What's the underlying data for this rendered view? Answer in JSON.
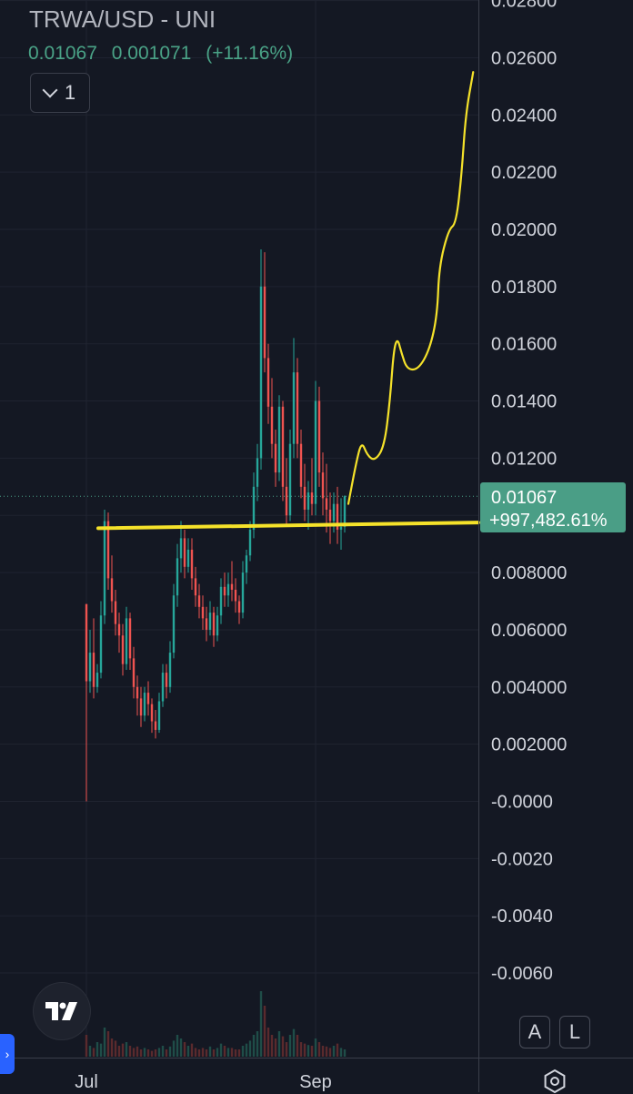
{
  "header": {
    "title": "TRWA/USD - UNI",
    "price": "0.01067",
    "change": "0.001071",
    "change_pct": "(+11.16%)"
  },
  "indicators_toggle": {
    "count": "1"
  },
  "scale_buttons": {
    "auto": "A",
    "log": "L"
  },
  "colors": {
    "background": "#141823",
    "up": "#26a69a",
    "down": "#ef5350",
    "drawing": "#f5e22a",
    "price_tag": "#4a9e86"
  },
  "icons": {
    "logo": "tradingview-logo-icon",
    "toggle": "chevron-down-icon",
    "settings": "gear-icon",
    "side_tab": "chevron-right-icon"
  },
  "chart_data": {
    "type": "candlestick",
    "title": "TRWA/USD - UNI",
    "ylim": [
      -0.0072,
      0.0282
    ],
    "y_ticks": [
      "0.02800",
      "0.02600",
      "0.02400",
      "0.02200",
      "0.02000",
      "0.01800",
      "0.01600",
      "0.01400",
      "0.01200",
      "0.008000",
      "0.006000",
      "0.004000",
      "0.002000",
      "-0.0000",
      "-0.0020",
      "-0.0040",
      "-0.0060"
    ],
    "x_ticks": [
      "Jul",
      "Sep"
    ],
    "last_price_label": "0.01067",
    "last_price_pct": "+997,482.61%",
    "last_price": 0.01067,
    "series": [
      {
        "values": [
          [
            0.0069,
            0.0069,
            0.0,
            0.0042
          ],
          [
            0.0042,
            0.006,
            0.0038,
            0.0052
          ],
          [
            0.0052,
            0.0064,
            0.0036,
            0.004
          ],
          [
            0.004,
            0.0048,
            0.0038,
            0.0045
          ],
          [
            0.0045,
            0.007,
            0.0043,
            0.0065
          ],
          [
            0.0065,
            0.0102,
            0.0062,
            0.0098
          ],
          [
            0.0098,
            0.0101,
            0.0074,
            0.0078
          ],
          [
            0.0078,
            0.0086,
            0.0066,
            0.007
          ],
          [
            0.007,
            0.0074,
            0.0058,
            0.0062
          ],
          [
            0.0062,
            0.0066,
            0.0052,
            0.0058
          ],
          [
            0.0058,
            0.0062,
            0.0044,
            0.0048
          ],
          [
            0.0048,
            0.0068,
            0.0046,
            0.0064
          ],
          [
            0.0064,
            0.0066,
            0.0046,
            0.005
          ],
          [
            0.005,
            0.0054,
            0.0036,
            0.004
          ],
          [
            0.004,
            0.0044,
            0.003,
            0.0036
          ],
          [
            0.0036,
            0.004,
            0.0026,
            0.003
          ],
          [
            0.003,
            0.004,
            0.0028,
            0.0038
          ],
          [
            0.0038,
            0.0042,
            0.003,
            0.0034
          ],
          [
            0.0034,
            0.0036,
            0.0024,
            0.0028
          ],
          [
            0.0028,
            0.0032,
            0.0022,
            0.0025
          ],
          [
            0.0025,
            0.0038,
            0.0024,
            0.0035
          ],
          [
            0.0035,
            0.0048,
            0.0033,
            0.0045
          ],
          [
            0.0045,
            0.0048,
            0.0036,
            0.004
          ],
          [
            0.004,
            0.0056,
            0.0038,
            0.0052
          ],
          [
            0.0052,
            0.0076,
            0.005,
            0.0072
          ],
          [
            0.0072,
            0.009,
            0.0068,
            0.0085
          ],
          [
            0.0085,
            0.0098,
            0.008,
            0.0092
          ],
          [
            0.0092,
            0.0095,
            0.0078,
            0.0082
          ],
          [
            0.0082,
            0.0092,
            0.008,
            0.0088
          ],
          [
            0.0088,
            0.0092,
            0.0074,
            0.0078
          ],
          [
            0.0078,
            0.0082,
            0.0068,
            0.0072
          ],
          [
            0.0072,
            0.0076,
            0.0064,
            0.0068
          ],
          [
            0.0068,
            0.0072,
            0.006,
            0.0064
          ],
          [
            0.0064,
            0.0068,
            0.0056,
            0.006
          ],
          [
            0.006,
            0.007,
            0.0058,
            0.0066
          ],
          [
            0.0066,
            0.0068,
            0.0054,
            0.0058
          ],
          [
            0.0058,
            0.0068,
            0.0056,
            0.0065
          ],
          [
            0.0065,
            0.0078,
            0.0062,
            0.0075
          ],
          [
            0.0075,
            0.008,
            0.0068,
            0.0072
          ],
          [
            0.0072,
            0.008,
            0.0068,
            0.0076
          ],
          [
            0.0076,
            0.0084,
            0.007,
            0.0074
          ],
          [
            0.0074,
            0.0078,
            0.0066,
            0.007
          ],
          [
            0.007,
            0.0072,
            0.0062,
            0.0066
          ],
          [
            0.0066,
            0.0084,
            0.0064,
            0.008
          ],
          [
            0.008,
            0.0088,
            0.0076,
            0.0086
          ],
          [
            0.0086,
            0.0098,
            0.0084,
            0.0095
          ],
          [
            0.0095,
            0.0115,
            0.0092,
            0.011
          ],
          [
            0.011,
            0.0125,
            0.0105,
            0.012
          ],
          [
            0.012,
            0.0193,
            0.0116,
            0.018
          ],
          [
            0.018,
            0.0192,
            0.015,
            0.0155
          ],
          [
            0.0155,
            0.016,
            0.0132,
            0.0138
          ],
          [
            0.0138,
            0.0148,
            0.012,
            0.0125
          ],
          [
            0.0125,
            0.013,
            0.011,
            0.0115
          ],
          [
            0.0115,
            0.0142,
            0.0112,
            0.0138
          ],
          [
            0.0138,
            0.014,
            0.0105,
            0.011
          ],
          [
            0.011,
            0.012,
            0.0096,
            0.01
          ],
          [
            0.01,
            0.013,
            0.0098,
            0.0125
          ],
          [
            0.0125,
            0.0162,
            0.012,
            0.015
          ],
          [
            0.015,
            0.0155,
            0.012,
            0.0125
          ],
          [
            0.0125,
            0.013,
            0.0106,
            0.011
          ],
          [
            0.011,
            0.0118,
            0.0098,
            0.0102
          ],
          [
            0.0102,
            0.0112,
            0.0095,
            0.0108
          ],
          [
            0.0108,
            0.012,
            0.01,
            0.0104
          ],
          [
            0.0104,
            0.0147,
            0.01,
            0.014
          ],
          [
            0.014,
            0.0145,
            0.011,
            0.0115
          ],
          [
            0.0115,
            0.0122,
            0.01,
            0.0106
          ],
          [
            0.0106,
            0.0118,
            0.0094,
            0.0102
          ],
          [
            0.0102,
            0.0108,
            0.009,
            0.0098
          ],
          [
            0.0098,
            0.0108,
            0.0094,
            0.0104
          ],
          [
            0.0104,
            0.011,
            0.009,
            0.0095
          ],
          [
            0.0095,
            0.0106,
            0.0088,
            0.0096
          ],
          [
            0.0096,
            0.0107,
            0.0094,
            0.01067
          ]
        ]
      }
    ],
    "volume": [
      0.3,
      0.15,
      0.12,
      0.2,
      0.18,
      0.4,
      0.35,
      0.25,
      0.22,
      0.15,
      0.18,
      0.2,
      0.15,
      0.12,
      0.14,
      0.1,
      0.12,
      0.1,
      0.08,
      0.1,
      0.12,
      0.15,
      0.1,
      0.14,
      0.22,
      0.3,
      0.25,
      0.2,
      0.15,
      0.18,
      0.12,
      0.1,
      0.12,
      0.1,
      0.14,
      0.1,
      0.12,
      0.18,
      0.15,
      0.12,
      0.12,
      0.1,
      0.1,
      0.15,
      0.18,
      0.22,
      0.3,
      0.35,
      0.9,
      0.7,
      0.4,
      0.3,
      0.25,
      0.35,
      0.28,
      0.2,
      0.3,
      0.38,
      0.3,
      0.2,
      0.18,
      0.16,
      0.15,
      0.25,
      0.2,
      0.15,
      0.14,
      0.12,
      0.15,
      0.18,
      0.12,
      0.1
    ],
    "drawings": {
      "support_line": [
        [
          0,
          0.00955
        ],
        [
          1,
          0.00975
        ]
      ],
      "projection": [
        [
          0.0,
          0.0104
        ],
        [
          0.04,
          0.0118
        ],
        [
          0.07,
          0.0126
        ],
        [
          0.1,
          0.0121
        ],
        [
          0.14,
          0.0119
        ],
        [
          0.19,
          0.0124
        ],
        [
          0.22,
          0.014
        ],
        [
          0.24,
          0.0158
        ],
        [
          0.26,
          0.0162
        ],
        [
          0.28,
          0.0157
        ],
        [
          0.31,
          0.0151
        ],
        [
          0.37,
          0.0151
        ],
        [
          0.43,
          0.0158
        ],
        [
          0.47,
          0.017
        ],
        [
          0.48,
          0.0187
        ],
        [
          0.53,
          0.02
        ],
        [
          0.57,
          0.0202
        ],
        [
          0.6,
          0.022
        ],
        [
          0.62,
          0.024
        ],
        [
          0.66,
          0.0255
        ]
      ]
    }
  }
}
